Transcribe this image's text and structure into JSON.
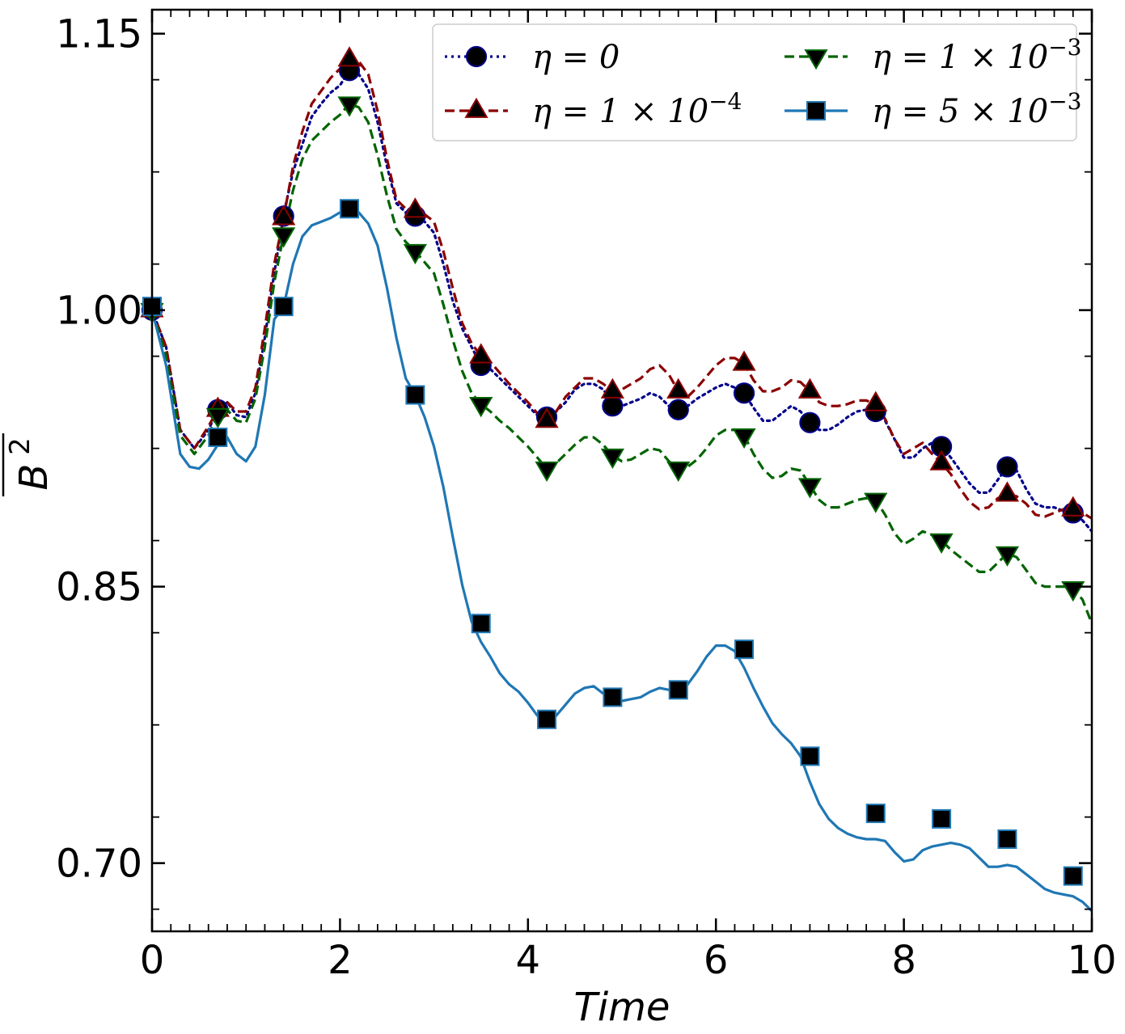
{
  "chart_data": {
    "type": "line",
    "title": "",
    "xlabel": "Time",
    "ylabel": "B",
    "ylabel_superscript": "2",
    "xlim": [
      0,
      10
    ],
    "ylim": [
      0.663,
      1.163
    ],
    "xticks": [
      0,
      2,
      4,
      6,
      8,
      10
    ],
    "xtick_labels": [
      "0",
      "2",
      "4",
      "6",
      "8",
      "10"
    ],
    "yticks": [
      0.7,
      0.85,
      1.0,
      1.15
    ],
    "ytick_labels": [
      "0.70",
      "0.85",
      "1.00",
      "1.15"
    ],
    "legend_position": "top-right",
    "series": [
      {
        "name": "η = 0",
        "label_parts": [
          "η = 0",
          ""
        ],
        "color": "#00008b",
        "linestyle": "dotted",
        "marker": "circle",
        "x": [
          0,
          0.15,
          0.3,
          0.45,
          0.6,
          0.7,
          0.8,
          0.9,
          1.0,
          1.1,
          1.2,
          1.3,
          1.4,
          1.5,
          1.6,
          1.7,
          1.8,
          1.9,
          2.0,
          2.1,
          2.2,
          2.3,
          2.4,
          2.5,
          2.6,
          2.7,
          2.8,
          2.9,
          3.0,
          3.1,
          3.2,
          3.3,
          3.4,
          3.5,
          3.6,
          3.7,
          3.8,
          3.9,
          4.0,
          4.1,
          4.2,
          4.3,
          4.4,
          4.5,
          4.6,
          4.7,
          4.8,
          4.9,
          5.0,
          5.1,
          5.2,
          5.3,
          5.4,
          5.5,
          5.6,
          5.7,
          5.8,
          5.9,
          6.0,
          6.1,
          6.2,
          6.3,
          6.4,
          6.5,
          6.6,
          6.7,
          6.8,
          6.9,
          7.0,
          7.1,
          7.2,
          7.3,
          7.4,
          7.5,
          7.6,
          7.7,
          7.8,
          7.9,
          8.0,
          8.1,
          8.2,
          8.3,
          8.4,
          8.5,
          8.6,
          8.7,
          8.8,
          8.9,
          9.0,
          9.1,
          9.2,
          9.3,
          9.4,
          9.5,
          9.6,
          9.7,
          9.8,
          9.9,
          10.0
        ],
        "y": [
          1.0,
          0.98,
          0.935,
          0.925,
          0.935,
          0.946,
          0.95,
          0.943,
          0.942,
          0.955,
          0.985,
          1.02,
          1.052,
          1.075,
          1.09,
          1.105,
          1.112,
          1.118,
          1.122,
          1.13,
          1.128,
          1.12,
          1.102,
          1.078,
          1.058,
          1.053,
          1.05,
          1.048,
          1.042,
          1.025,
          1.005,
          0.99,
          0.98,
          0.97,
          0.968,
          0.963,
          0.958,
          0.953,
          0.948,
          0.943,
          0.942,
          0.945,
          0.95,
          0.957,
          0.96,
          0.96,
          0.957,
          0.95,
          0.948,
          0.95,
          0.952,
          0.955,
          0.953,
          0.948,
          0.946,
          0.948,
          0.952,
          0.955,
          0.958,
          0.96,
          0.958,
          0.955,
          0.947,
          0.94,
          0.94,
          0.944,
          0.948,
          0.945,
          0.939,
          0.935,
          0.935,
          0.938,
          0.942,
          0.945,
          0.946,
          0.945,
          0.94,
          0.93,
          0.92,
          0.92,
          0.925,
          0.928,
          0.926,
          0.92,
          0.913,
          0.906,
          0.901,
          0.901,
          0.908,
          0.915,
          0.913,
          0.903,
          0.895,
          0.893,
          0.893,
          0.891,
          0.89,
          0.886,
          0.88
        ],
        "marker_x": [
          0,
          0.7,
          1.4,
          2.1,
          2.8,
          3.5,
          4.2,
          4.9,
          5.6,
          6.3,
          7.0,
          7.7,
          8.4,
          9.1,
          9.8
        ],
        "marker_y": [
          1.0,
          0.946,
          1.051,
          1.13,
          1.051,
          0.97,
          0.942,
          0.948,
          0.946,
          0.955,
          0.939,
          0.945,
          0.926,
          0.915,
          0.89
        ]
      },
      {
        "name": "η = 1 × 10−4",
        "label_parts": [
          "η = 1 × 10",
          "−4"
        ],
        "color": "#8b0000",
        "linestyle": "dashed",
        "marker": "triangle-up",
        "x": [
          0,
          0.15,
          0.3,
          0.45,
          0.6,
          0.7,
          0.8,
          0.9,
          1.0,
          1.1,
          1.2,
          1.3,
          1.4,
          1.5,
          1.6,
          1.7,
          1.8,
          1.9,
          2.0,
          2.1,
          2.2,
          2.3,
          2.4,
          2.5,
          2.6,
          2.7,
          2.8,
          2.9,
          3.0,
          3.1,
          3.2,
          3.3,
          3.4,
          3.5,
          3.6,
          3.7,
          3.8,
          3.9,
          4.0,
          4.1,
          4.2,
          4.3,
          4.4,
          4.5,
          4.6,
          4.7,
          4.8,
          4.9,
          5.0,
          5.1,
          5.2,
          5.3,
          5.4,
          5.5,
          5.6,
          5.7,
          5.8,
          5.9,
          6.0,
          6.1,
          6.2,
          6.3,
          6.4,
          6.5,
          6.6,
          6.7,
          6.8,
          6.9,
          7.0,
          7.1,
          7.2,
          7.3,
          7.4,
          7.5,
          7.6,
          7.7,
          7.8,
          7.9,
          8.0,
          8.1,
          8.2,
          8.3,
          8.4,
          8.5,
          8.6,
          8.7,
          8.8,
          8.9,
          9.0,
          9.1,
          9.2,
          9.3,
          9.4,
          9.5,
          9.6,
          9.7,
          9.8,
          9.9,
          10.0
        ],
        "y": [
          1.0,
          0.98,
          0.935,
          0.925,
          0.937,
          0.946,
          0.95,
          0.945,
          0.945,
          0.958,
          0.99,
          1.025,
          1.05,
          1.078,
          1.097,
          1.112,
          1.119,
          1.126,
          1.131,
          1.136,
          1.135,
          1.128,
          1.108,
          1.082,
          1.06,
          1.055,
          1.054,
          1.052,
          1.048,
          1.032,
          1.012,
          0.993,
          0.982,
          0.975,
          0.972,
          0.966,
          0.96,
          0.955,
          0.95,
          0.944,
          0.94,
          0.945,
          0.953,
          0.958,
          0.963,
          0.963,
          0.96,
          0.956,
          0.957,
          0.96,
          0.963,
          0.968,
          0.97,
          0.965,
          0.956,
          0.953,
          0.958,
          0.964,
          0.97,
          0.974,
          0.974,
          0.971,
          0.962,
          0.956,
          0.956,
          0.958,
          0.962,
          0.961,
          0.956,
          0.95,
          0.948,
          0.948,
          0.949,
          0.951,
          0.951,
          0.949,
          0.941,
          0.93,
          0.922,
          0.925,
          0.928,
          0.922,
          0.917,
          0.911,
          0.903,
          0.896,
          0.892,
          0.893,
          0.898,
          0.9,
          0.899,
          0.895,
          0.889,
          0.888,
          0.89,
          0.892,
          0.892,
          0.89,
          0.887
        ],
        "marker_x": [
          0,
          0.7,
          1.4,
          2.1,
          2.8,
          3.5,
          4.2,
          4.9,
          5.6,
          6.3,
          7.0,
          7.7,
          8.4,
          9.1,
          9.8
        ],
        "marker_y": [
          1.0,
          0.946,
          1.05,
          1.136,
          1.054,
          0.975,
          0.94,
          0.956,
          0.956,
          0.971,
          0.956,
          0.949,
          0.917,
          0.9,
          0.892
        ]
      },
      {
        "name": "η = 1 × 10−3",
        "label_parts": [
          "η = 1 × 10",
          "−3"
        ],
        "color": "#006400",
        "linestyle": "dashed",
        "marker": "triangle-down",
        "x": [
          0,
          0.15,
          0.3,
          0.45,
          0.6,
          0.7,
          0.8,
          0.9,
          1.0,
          1.1,
          1.2,
          1.3,
          1.4,
          1.5,
          1.6,
          1.7,
          1.8,
          1.9,
          2.0,
          2.1,
          2.2,
          2.3,
          2.4,
          2.5,
          2.6,
          2.7,
          2.8,
          2.9,
          3.0,
          3.1,
          3.2,
          3.3,
          3.4,
          3.5,
          3.6,
          3.7,
          3.8,
          3.9,
          4.0,
          4.1,
          4.2,
          4.3,
          4.4,
          4.5,
          4.6,
          4.7,
          4.8,
          4.9,
          5.0,
          5.1,
          5.2,
          5.3,
          5.4,
          5.5,
          5.6,
          5.7,
          5.8,
          5.9,
          6.0,
          6.1,
          6.2,
          6.3,
          6.4,
          6.5,
          6.6,
          6.7,
          6.8,
          6.9,
          7.0,
          7.1,
          7.2,
          7.3,
          7.4,
          7.5,
          7.6,
          7.7,
          7.8,
          7.9,
          8.0,
          8.1,
          8.2,
          8.3,
          8.4,
          8.5,
          8.6,
          8.7,
          8.8,
          8.9,
          9.0,
          9.1,
          9.2,
          9.3,
          9.4,
          9.5,
          9.6,
          9.7,
          9.8,
          9.9,
          10.0
        ],
        "y": [
          1.0,
          0.975,
          0.932,
          0.922,
          0.932,
          0.943,
          0.946,
          0.94,
          0.939,
          0.952,
          0.98,
          1.015,
          1.041,
          1.065,
          1.082,
          1.092,
          1.097,
          1.102,
          1.106,
          1.112,
          1.11,
          1.102,
          1.084,
          1.062,
          1.044,
          1.037,
          1.032,
          1.026,
          1.02,
          1.003,
          0.984,
          0.967,
          0.955,
          0.949,
          0.945,
          0.94,
          0.936,
          0.931,
          0.926,
          0.92,
          0.914,
          0.917,
          0.922,
          0.927,
          0.931,
          0.931,
          0.927,
          0.921,
          0.918,
          0.919,
          0.922,
          0.925,
          0.924,
          0.918,
          0.914,
          0.915,
          0.919,
          0.925,
          0.932,
          0.935,
          0.935,
          0.932,
          0.922,
          0.914,
          0.909,
          0.91,
          0.914,
          0.913,
          0.905,
          0.897,
          0.893,
          0.893,
          0.895,
          0.897,
          0.898,
          0.897,
          0.889,
          0.879,
          0.873,
          0.876,
          0.88,
          0.878,
          0.875,
          0.87,
          0.866,
          0.862,
          0.858,
          0.858,
          0.863,
          0.868,
          0.866,
          0.859,
          0.852,
          0.85,
          0.85,
          0.85,
          0.849,
          0.843,
          0.83
        ],
        "marker_x": [
          0,
          0.7,
          1.4,
          2.1,
          2.8,
          3.5,
          4.2,
          4.9,
          5.6,
          6.3,
          7.0,
          7.7,
          8.4,
          9.1,
          9.8
        ],
        "marker_y": [
          1.0,
          0.943,
          1.041,
          1.112,
          1.032,
          0.949,
          0.914,
          0.921,
          0.914,
          0.932,
          0.905,
          0.897,
          0.875,
          0.868,
          0.849
        ]
      },
      {
        "name": "η = 5 × 10−3",
        "label_parts": [
          "η = 5 × 10",
          "−3"
        ],
        "color": "#1f77b4",
        "linestyle": "solid",
        "marker": "square",
        "x": [
          0,
          0.15,
          0.3,
          0.4,
          0.5,
          0.6,
          0.7,
          0.8,
          0.9,
          1.0,
          1.1,
          1.2,
          1.3,
          1.4,
          1.5,
          1.6,
          1.7,
          1.8,
          1.9,
          2.0,
          2.1,
          2.2,
          2.3,
          2.4,
          2.5,
          2.6,
          2.7,
          2.8,
          2.9,
          3.0,
          3.1,
          3.2,
          3.3,
          3.4,
          3.5,
          3.6,
          3.7,
          3.8,
          3.9,
          4.0,
          4.1,
          4.2,
          4.3,
          4.4,
          4.5,
          4.6,
          4.7,
          4.8,
          4.9,
          5.0,
          5.1,
          5.2,
          5.3,
          5.4,
          5.5,
          5.6,
          5.7,
          5.8,
          5.9,
          6.0,
          6.1,
          6.2,
          6.3,
          6.4,
          6.5,
          6.6,
          6.7,
          6.8,
          6.9,
          7.0,
          7.1,
          7.2,
          7.3,
          7.4,
          7.5,
          7.6,
          7.7,
          7.8,
          7.9,
          8.0,
          8.1,
          8.2,
          8.3,
          8.4,
          8.5,
          8.6,
          8.7,
          8.8,
          8.9,
          9.0,
          9.1,
          9.2,
          9.3,
          9.4,
          9.5,
          9.6,
          9.7,
          9.8,
          9.9,
          10.0
        ],
        "y": [
          1.0,
          0.97,
          0.922,
          0.915,
          0.914,
          0.919,
          0.927,
          0.931,
          0.922,
          0.918,
          0.926,
          0.954,
          0.995,
          1.002,
          1.025,
          1.04,
          1.046,
          1.048,
          1.05,
          1.053,
          1.055,
          1.053,
          1.047,
          1.035,
          1.012,
          0.985,
          0.963,
          0.954,
          0.942,
          0.926,
          0.904,
          0.877,
          0.851,
          0.831,
          0.82,
          0.812,
          0.803,
          0.797,
          0.793,
          0.787,
          0.78,
          0.778,
          0.78,
          0.786,
          0.792,
          0.795,
          0.796,
          0.792,
          0.79,
          0.788,
          0.789,
          0.79,
          0.793,
          0.795,
          0.794,
          0.794,
          0.797,
          0.804,
          0.812,
          0.818,
          0.818,
          0.815,
          0.806,
          0.795,
          0.785,
          0.776,
          0.77,
          0.765,
          0.758,
          0.744,
          0.732,
          0.724,
          0.719,
          0.716,
          0.714,
          0.713,
          0.713,
          0.712,
          0.706,
          0.701,
          0.702,
          0.707,
          0.709,
          0.71,
          0.711,
          0.71,
          0.708,
          0.703,
          0.698,
          0.698,
          0.699,
          0.698,
          0.694,
          0.69,
          0.686,
          0.684,
          0.683,
          0.682,
          0.679,
          0.674
        ],
        "marker_x": [
          0,
          0.7,
          1.4,
          2.1,
          2.8,
          3.5,
          4.2,
          4.9,
          5.6,
          6.3,
          7.0,
          7.7,
          8.4,
          9.1,
          9.8
        ],
        "marker_y": [
          1.002,
          0.931,
          1.002,
          1.055,
          0.954,
          0.83,
          0.778,
          0.79,
          0.794,
          0.816,
          0.758,
          0.727,
          0.724,
          0.713,
          0.693
        ]
      }
    ]
  }
}
